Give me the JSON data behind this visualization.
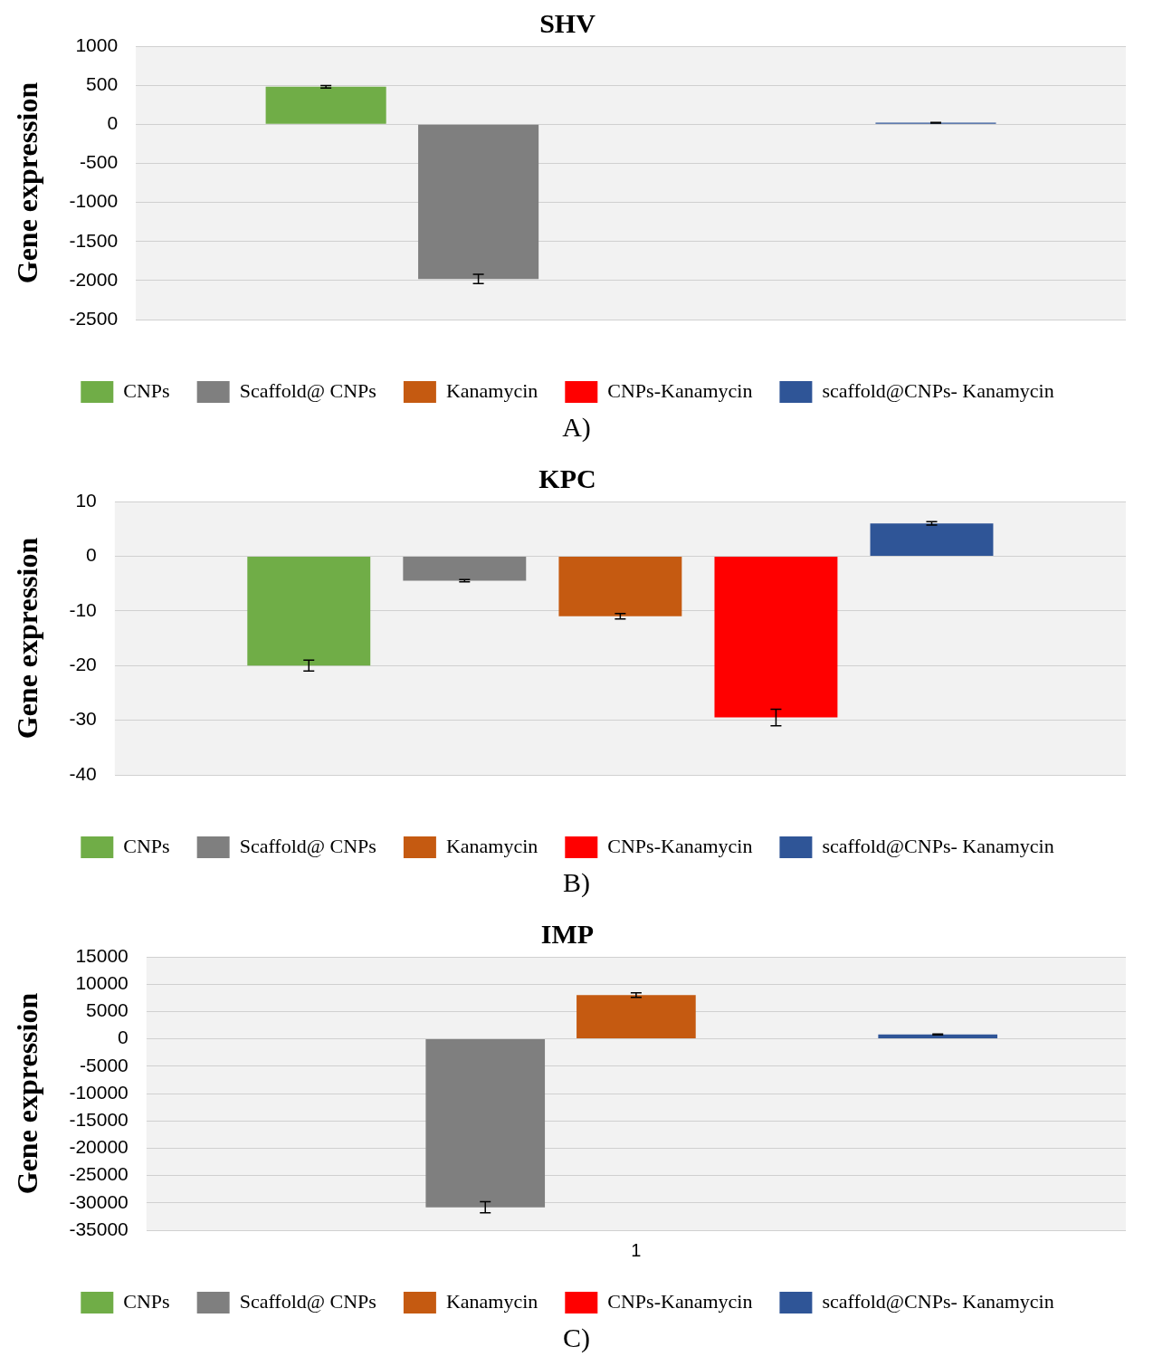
{
  "chart_data": [
    {
      "type": "bar",
      "title": "SHV",
      "ylabel": "Gene expression",
      "categories": [
        null
      ],
      "series": [
        {
          "name": "CNPs",
          "color": "#70ad47",
          "values": [
            480
          ],
          "errors": [
            15
          ]
        },
        {
          "name": "Scaffold@ CNPs",
          "color": "#7f7f7f",
          "values": [
            -1980
          ],
          "errors": [
            60
          ]
        },
        {
          "name": "Kanamycin",
          "color": "#c55a11",
          "values": [
            0
          ],
          "errors": [
            null
          ]
        },
        {
          "name": "CNPs-Kanamycin",
          "color": "#ff0000",
          "values": [
            0
          ],
          "errors": [
            null
          ]
        },
        {
          "name": "scaffold@CNPs- Kanamycin",
          "color": "#2f5597",
          "values": [
            20
          ],
          "errors": [
            5
          ]
        }
      ],
      "ylim": [
        -2500,
        1000
      ],
      "yticks": [
        -2500,
        -2000,
        -1500,
        -1000,
        -500,
        0,
        500,
        1000
      ],
      "grid": "y",
      "legend": "bottom",
      "annotations": [
        "A)"
      ]
    },
    {
      "type": "bar",
      "title": "KPC",
      "ylabel": "Gene expression",
      "categories": [
        null
      ],
      "series": [
        {
          "name": "CNPs",
          "color": "#70ad47",
          "values": [
            -20
          ],
          "errors": [
            1
          ]
        },
        {
          "name": "Scaffold@ CNPs",
          "color": "#7f7f7f",
          "values": [
            -4.5
          ],
          "errors": [
            0.2
          ]
        },
        {
          "name": "Kanamycin",
          "color": "#c55a11",
          "values": [
            -11
          ],
          "errors": [
            0.5
          ]
        },
        {
          "name": "CNPs-Kanamycin",
          "color": "#ff0000",
          "values": [
            -29.5
          ],
          "errors": [
            1.5
          ]
        },
        {
          "name": "scaffold@CNPs- Kanamycin",
          "color": "#2f5597",
          "values": [
            6
          ],
          "errors": [
            0.3
          ]
        }
      ],
      "ylim": [
        -40,
        10
      ],
      "yticks": [
        -40,
        -30,
        -20,
        -10,
        0,
        10
      ],
      "grid": "y",
      "legend": "bottom",
      "annotations": [
        "B)"
      ]
    },
    {
      "type": "bar",
      "title": "IMP",
      "ylabel": "Gene expression",
      "categories": [
        "1"
      ],
      "series": [
        {
          "name": "CNPs",
          "color": "#70ad47",
          "values": [
            0
          ],
          "errors": [
            null
          ]
        },
        {
          "name": "Scaffold@ CNPs",
          "color": "#7f7f7f",
          "values": [
            -30800
          ],
          "errors": [
            1000
          ]
        },
        {
          "name": "Kanamycin",
          "color": "#c55a11",
          "values": [
            8000
          ],
          "errors": [
            400
          ]
        },
        {
          "name": "CNPs-Kanamycin",
          "color": "#ff0000",
          "values": [
            0
          ],
          "errors": [
            null
          ]
        },
        {
          "name": "scaffold@CNPs- Kanamycin",
          "color": "#2f5597",
          "values": [
            800
          ],
          "errors": [
            100
          ]
        }
      ],
      "ylim": [
        -35000,
        15000
      ],
      "yticks": [
        -35000,
        -30000,
        -25000,
        -20000,
        -15000,
        -10000,
        -5000,
        0,
        5000,
        10000,
        15000
      ],
      "grid": "y",
      "legend": "bottom",
      "annotations": [
        "C)"
      ]
    }
  ]
}
